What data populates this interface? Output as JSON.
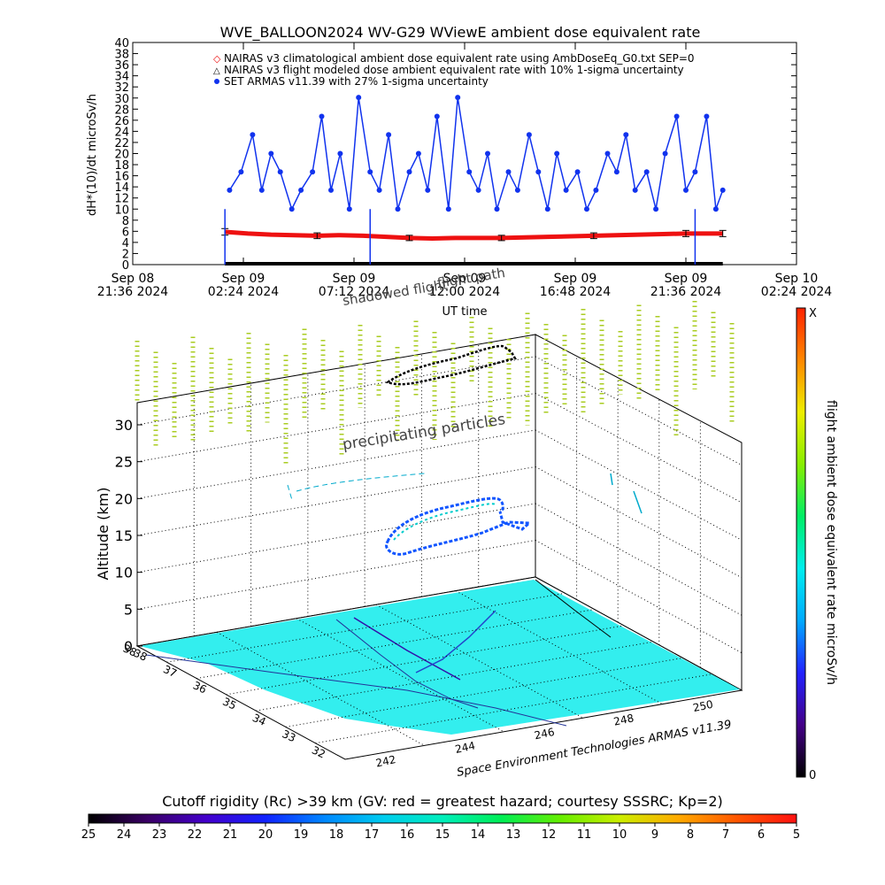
{
  "figure_title": "WVE_BALLOON2024 WV-G29 WViewE ambient dose equivalent rate",
  "colors": {
    "series_measured": "#1133ee",
    "series_clim": "#ee1111",
    "series_modeled": "#000000",
    "vertical_markers": "#aacc22",
    "ground_fill": "#33eeee"
  },
  "chart_data": [
    {
      "type": "scatter",
      "title": "WVE_BALLOON2024 WV-G29 WViewE ambient dose equivalent rate",
      "xlabel": "UT time",
      "ylabel": "dH*(10)/dt microSv/h",
      "ylim": [
        0,
        40
      ],
      "y_ticks": [
        "0",
        "2",
        "4",
        "6",
        "8",
        "10",
        "12",
        "14",
        "16",
        "18",
        "20",
        "22",
        "24",
        "26",
        "28",
        "30",
        "32",
        "34",
        "36",
        "38",
        "40"
      ],
      "x_ticks": [
        {
          "l1": "Sep 08",
          "l2": "21:36 2024"
        },
        {
          "l1": "Sep 09",
          "l2": "02:24 2024"
        },
        {
          "l1": "Sep 09",
          "l2": "07:12 2024"
        },
        {
          "l1": "Sep 09",
          "l2": "12:00 2024"
        },
        {
          "l1": "Sep 09",
          "l2": "16:48 2024"
        },
        {
          "l1": "Sep 09",
          "l2": "21:36 2024"
        },
        {
          "l1": "Sep 10",
          "l2": "02:24 2024"
        }
      ],
      "x_hours_range": [
        0,
        28.8
      ],
      "grid": false,
      "legend_position": "top-center",
      "series": [
        {
          "name": "NAIRAS v3 climatological ambient dose equivalent rate using AmbDoseEq_G0.txt SEP=0",
          "marker": "diamond",
          "x_hours": [
            4.0,
            6.0,
            8.0,
            10.0,
            12.0,
            14.0,
            16.0,
            18.0,
            20.0,
            22.0,
            24.0,
            25.6
          ],
          "values": [
            0,
            0,
            0,
            0,
            0,
            0,
            0,
            0,
            0,
            0,
            0,
            0
          ]
        },
        {
          "name": "NAIRAS v3 flight modeled dose ambient equivalent rate with 10% 1-sigma uncertainty",
          "marker": "triangle",
          "x_hours": [
            4.0,
            5.0,
            6.0,
            7.0,
            8.0,
            9.0,
            10.0,
            11.0,
            12.0,
            13.0,
            14.0,
            15.0,
            16.0,
            17.0,
            18.0,
            19.0,
            20.0,
            21.0,
            22.0,
            23.0,
            24.0,
            25.6
          ],
          "values": [
            5.9,
            5.6,
            5.4,
            5.3,
            5.2,
            5.3,
            5.2,
            5.0,
            4.8,
            4.7,
            4.8,
            4.8,
            4.8,
            4.9,
            5.0,
            5.1,
            5.2,
            5.3,
            5.4,
            5.5,
            5.6,
            5.6
          ],
          "error_bars_at_hours": [
            4.0,
            8.0,
            12.0,
            16.0,
            20.0,
            24.0,
            25.6
          ]
        },
        {
          "name": "SET ARMAS v11.39 with 27% 1-sigma uncertainty",
          "marker": "dot",
          "x_hours": [
            4.2,
            4.7,
            5.2,
            5.6,
            6.0,
            6.4,
            6.9,
            7.3,
            7.8,
            8.2,
            8.6,
            9.0,
            9.4,
            9.8,
            10.3,
            10.7,
            11.1,
            11.5,
            12.0,
            12.4,
            12.8,
            13.2,
            13.7,
            14.1,
            14.6,
            15.0,
            15.4,
            15.8,
            16.3,
            16.7,
            17.2,
            17.6,
            18.0,
            18.4,
            18.8,
            19.3,
            19.7,
            20.1,
            20.6,
            21.0,
            21.4,
            21.8,
            22.3,
            22.7,
            23.1,
            23.6,
            24.0,
            24.4,
            24.9,
            25.3,
            25.6
          ],
          "values": [
            13.4,
            16.7,
            23.4,
            13.4,
            20.0,
            16.7,
            10.0,
            13.4,
            16.7,
            26.7,
            13.4,
            20.0,
            10.0,
            30.1,
            16.7,
            13.4,
            23.4,
            10.0,
            16.7,
            20.0,
            13.4,
            26.7,
            10.0,
            30.1,
            16.7,
            13.4,
            20.0,
            10.0,
            16.7,
            13.4,
            23.4,
            16.7,
            10.0,
            20.0,
            13.4,
            16.7,
            10.0,
            13.4,
            20.0,
            16.7,
            23.4,
            13.4,
            16.7,
            10.0,
            20.0,
            26.7,
            13.4,
            16.7,
            26.7,
            10.0,
            13.4
          ]
        }
      ]
    },
    {
      "type": "scatter",
      "title": "",
      "zlabel": "Altitude (km)",
      "z_ticks": [
        "0",
        "5",
        "10",
        "15",
        "20",
        "25",
        "30"
      ],
      "zlim": [
        0,
        33
      ],
      "lon_ticks": [
        "242",
        "244",
        "246",
        "248",
        "250"
      ],
      "lat_ticks": [
        "38",
        "37",
        "36",
        "35",
        "34",
        "33",
        "32"
      ],
      "lat_corner_tick": "38",
      "credit": "Space Environment Technologies ARMAS v11.39",
      "annotations": [
        "precipitating particles",
        "shadowed flight",
        "flight path"
      ],
      "colorbar": {
        "label": "flight ambient dose equivalent rate microSv/h",
        "max_label": "X",
        "min_label": "0",
        "stops": [
          "#000000",
          "#440088",
          "#2222ff",
          "#00aaff",
          "#00eeee",
          "#00ee66",
          "#88ee00",
          "#eeee00",
          "#ff8800",
          "#ff2200"
        ]
      }
    },
    {
      "type": "heatmap",
      "title": "Cutoff rigidity (Rc) >39 km (GV: red = greatest hazard; courtesy SSSRC; Kp=2)",
      "ticks": [
        "25",
        "24",
        "23",
        "22",
        "21",
        "20",
        "19",
        "18",
        "17",
        "16",
        "15",
        "14",
        "13",
        "12",
        "11",
        "10",
        "9",
        "8",
        "7",
        "6",
        "5"
      ],
      "stops": [
        "#000000",
        "#3a0066",
        "#4400cc",
        "#1122ff",
        "#0088ff",
        "#00ccee",
        "#00eebb",
        "#00ee55",
        "#66ee00",
        "#ccee00",
        "#ffaa00",
        "#ff5500",
        "#ff1111"
      ]
    }
  ]
}
